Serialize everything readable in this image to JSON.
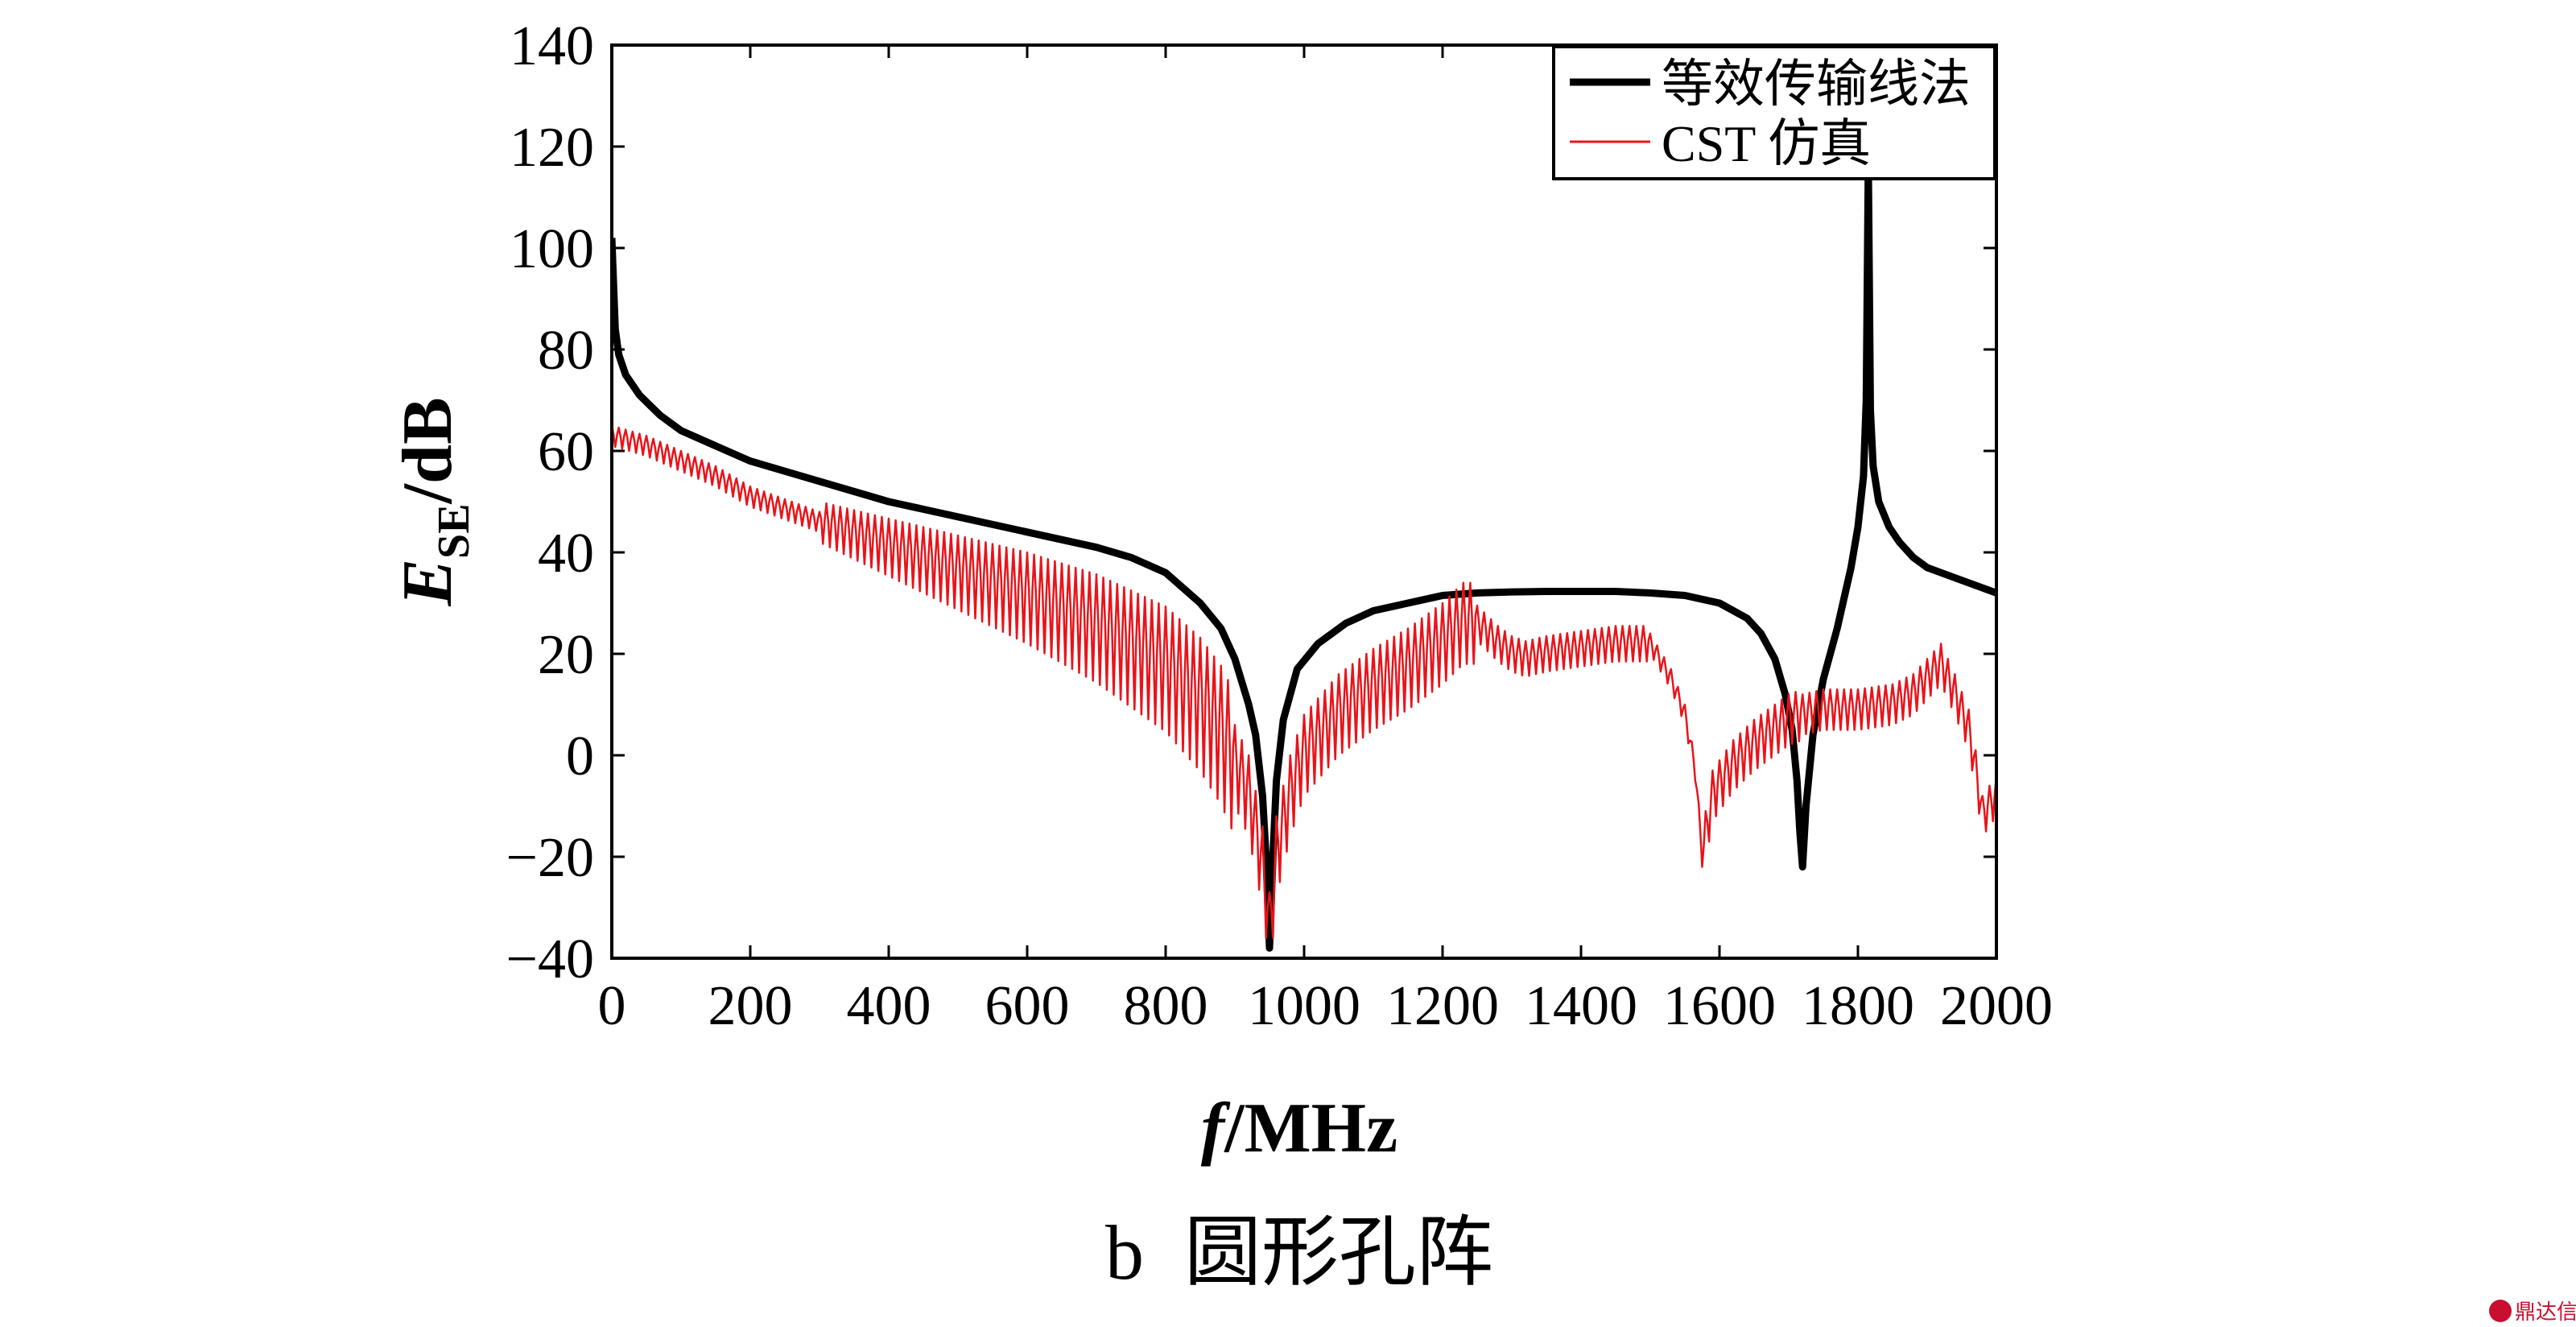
{
  "chart_data": {
    "type": "line",
    "xlabel_italic": "f",
    "xlabel_unit": "/MHz",
    "ylabel_main": "E",
    "ylabel_sub": "SE",
    "ylabel_unit": "/dB",
    "caption_letter": "b",
    "caption_text": "圆形孔阵",
    "xlim": [
      0,
      2000
    ],
    "ylim": [
      -40,
      140
    ],
    "x_ticks": [
      0,
      200,
      400,
      600,
      800,
      1000,
      1200,
      1400,
      1600,
      1800,
      2000
    ],
    "y_ticks": [
      -40,
      -20,
      0,
      20,
      40,
      60,
      80,
      100,
      120,
      140
    ],
    "y_tick_labels": [
      "−40",
      "−20",
      "0",
      "20",
      "40",
      "60",
      "80",
      "100",
      "120",
      "140"
    ],
    "grid": false,
    "legend_position": "top-right",
    "series": [
      {
        "name": "等效传输线法",
        "color": "#000000",
        "style": "thick",
        "x": [
          0,
          5,
          10,
          20,
          40,
          70,
          100,
          150,
          200,
          300,
          400,
          500,
          600,
          700,
          750,
          800,
          850,
          880,
          900,
          920,
          930,
          940,
          945,
          950,
          955,
          960,
          970,
          990,
          1020,
          1060,
          1100,
          1150,
          1200,
          1250,
          1300,
          1350,
          1400,
          1450,
          1500,
          1550,
          1600,
          1640,
          1660,
          1680,
          1695,
          1705,
          1712,
          1716,
          1720,
          1725,
          1735,
          1750,
          1770,
          1790,
          1800,
          1808,
          1812,
          1815,
          1818,
          1822,
          1830,
          1845,
          1860,
          1880,
          1900,
          1950,
          2000
        ],
        "y": [
          102,
          84,
          79,
          75,
          71,
          67,
          64,
          61,
          58,
          54,
          50,
          47,
          44,
          41,
          39,
          36,
          30,
          25,
          19,
          10,
          4,
          -8,
          -20,
          -38,
          -20,
          -5,
          7,
          17,
          22,
          26,
          28.5,
          30,
          31.5,
          32,
          32.2,
          32.3,
          32.3,
          32.3,
          32,
          31.5,
          30,
          27,
          24,
          19,
          12,
          5,
          -5,
          -15,
          -22,
          -10,
          4,
          15,
          25,
          37,
          45,
          55,
          70,
          117,
          68,
          57,
          50,
          45,
          42,
          39,
          37,
          34.5,
          32
        ]
      },
      {
        "name": "CST 仿真",
        "color": "#e8141a",
        "style": "thin",
        "x": [
          0,
          50,
          100,
          150,
          200,
          300,
          400,
          500,
          600,
          700,
          750,
          800,
          850,
          880,
          900,
          920,
          930,
          940,
          945,
          950,
          955,
          960,
          980,
          1000,
          1050,
          1100,
          1150,
          1200,
          1230,
          1250,
          1280,
          1300,
          1320,
          1350,
          1400,
          1450,
          1480,
          1500,
          1530,
          1550,
          1565,
          1575,
          1590,
          1620,
          1650,
          1680,
          1700,
          1720,
          1750,
          1800,
          1850,
          1880,
          1900,
          1920,
          1940,
          1960,
          1970,
          1980,
          1990,
          2000
        ],
        "y": [
          63,
          61,
          58,
          55,
          51,
          46,
          41,
          36,
          31,
          25,
          21,
          17,
          10,
          4,
          -2,
          -8,
          -15,
          -22,
          -28,
          -35,
          -28,
          -20,
          -8,
          0,
          8,
          13,
          17,
          22,
          26,
          26,
          22,
          20,
          19,
          20,
          21,
          22,
          22,
          22,
          15,
          8,
          -3,
          -20,
          -8,
          -2,
          2,
          5,
          7,
          8,
          9,
          9,
          10,
          12,
          15,
          18,
          12,
          5,
          -3,
          -12,
          -10,
          -8
        ]
      }
    ]
  },
  "watermark": "鼎达信"
}
